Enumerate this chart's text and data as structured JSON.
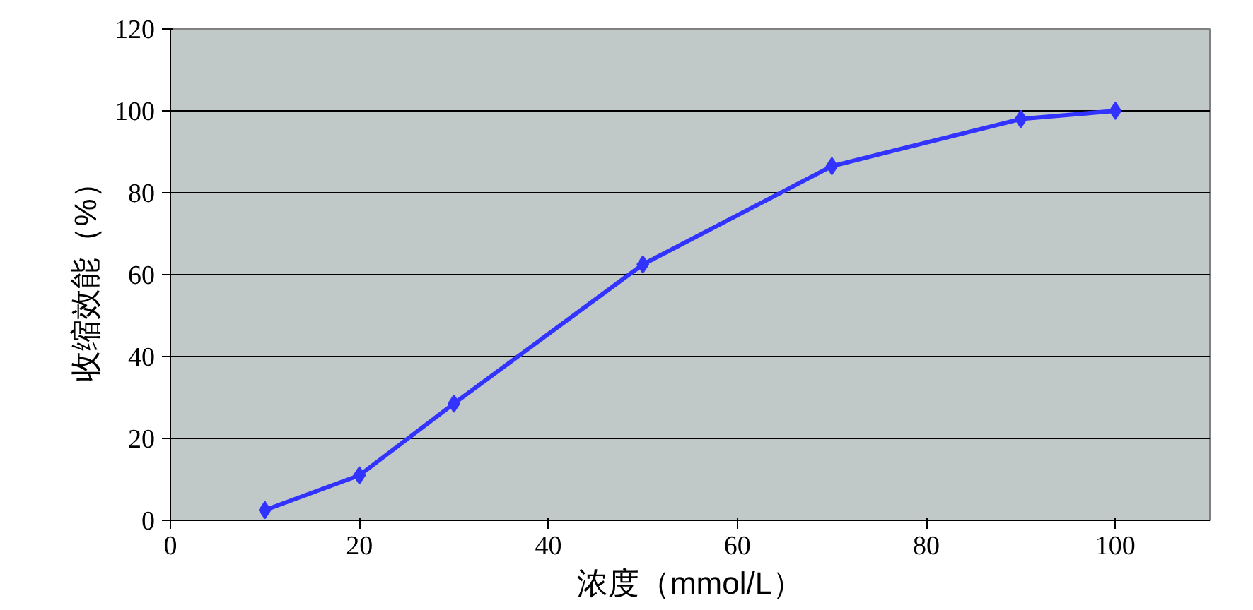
{
  "chart_data": {
    "type": "line",
    "xlabel": "浓度（mmol/L）",
    "ylabel": "收缩效能（%）",
    "x": [
      10,
      20,
      30,
      50,
      70,
      90,
      100
    ],
    "series": [
      {
        "color": "#3333ff",
        "values": [
          2.5,
          11,
          28.5,
          62.5,
          86.5,
          98,
          100
        ]
      }
    ],
    "xlim": [
      0,
      110
    ],
    "xticks": [
      0,
      20,
      40,
      60,
      80,
      100
    ],
    "ylim": [
      0,
      120
    ],
    "yticks": [
      0,
      20,
      40,
      60,
      80,
      100,
      120
    ],
    "grid": "y",
    "marker": "diamond",
    "line_style": "solid"
  }
}
